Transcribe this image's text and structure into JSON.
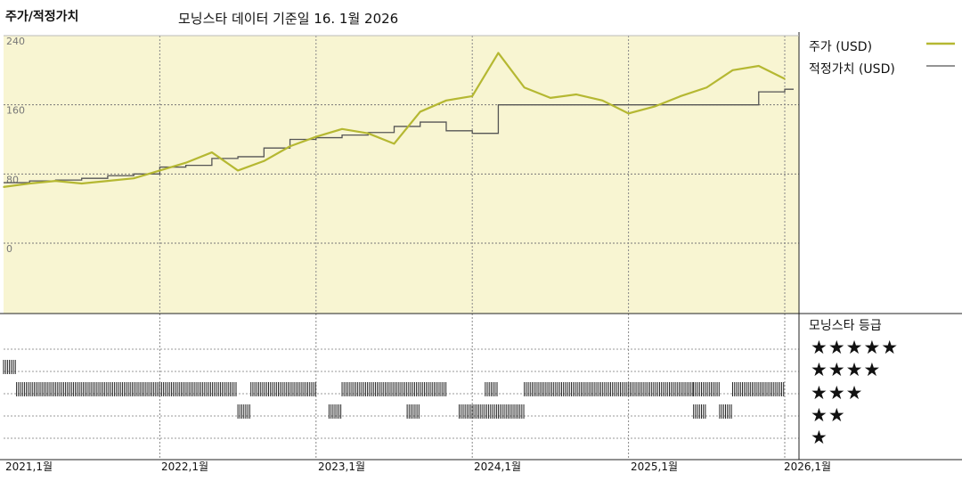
{
  "header": {
    "title": "주가/적정가치",
    "subtitle": "모닝스타 데이터 기준일 16. 1월 2026"
  },
  "legend": {
    "price_label": "주가 (USD)",
    "fair_value_label": "적정가치 (USD)"
  },
  "rating": {
    "title": "모닝스타 등급",
    "levels": [
      "★★★★★",
      "★★★★",
      "★★★",
      "★★",
      "★"
    ]
  },
  "colors": {
    "price": "#b5b832",
    "fair_value": "#555555",
    "plot_bg": "#f8f5d2"
  },
  "x_labels": [
    "2021,1월",
    "2022,1월",
    "2023,1월",
    "2024,1월",
    "2025,1월",
    "2026,1월"
  ],
  "chart_data": {
    "type": "line",
    "x": [
      "2021-01",
      "2021-03",
      "2021-05",
      "2021-07",
      "2021-09",
      "2021-11",
      "2022-01",
      "2022-03",
      "2022-05",
      "2022-07",
      "2022-09",
      "2022-11",
      "2023-01",
      "2023-03",
      "2023-05",
      "2023-07",
      "2023-09",
      "2023-11",
      "2024-01",
      "2024-03",
      "2024-05",
      "2024-07",
      "2024-09",
      "2024-11",
      "2025-01",
      "2025-03",
      "2025-05",
      "2025-07",
      "2025-09",
      "2025-11",
      "2026-01"
    ],
    "series": [
      {
        "name": "주가 (USD)",
        "values": [
          65,
          69,
          72,
          69,
          72,
          75,
          84,
          93,
          105,
          84,
          95,
          112,
          123,
          132,
          127,
          115,
          152,
          165,
          170,
          220,
          180,
          168,
          172,
          165,
          150,
          158,
          170,
          180,
          200,
          205,
          190
        ]
      },
      {
        "name": "적정가치 (USD)",
        "values": [
          70,
          72,
          73,
          75,
          78,
          80,
          88,
          90,
          98,
          100,
          110,
          120,
          122,
          125,
          128,
          135,
          140,
          130,
          127,
          160,
          160,
          160,
          160,
          160,
          160,
          160,
          160,
          160,
          160,
          175,
          178
        ]
      }
    ],
    "yticks": [
      "240",
      "160",
      "80",
      "0"
    ],
    "ylim": [
      0,
      240
    ],
    "grid": true,
    "legend_position": "right"
  },
  "star_rating_segments": [
    {
      "stars": 4,
      "from": "2021-01",
      "to": "2021-02"
    },
    {
      "stars": 3,
      "from": "2021-02",
      "to": "2022-07"
    },
    {
      "stars": 2,
      "from": "2022-07",
      "to": "2022-08"
    },
    {
      "stars": 3,
      "from": "2022-08",
      "to": "2023-01"
    },
    {
      "stars": 2,
      "from": "2023-02",
      "to": "2023-03"
    },
    {
      "stars": 3,
      "from": "2023-03",
      "to": "2023-11"
    },
    {
      "stars": 2,
      "from": "2023-08",
      "to": "2023-09"
    },
    {
      "stars": 2,
      "from": "2023-12",
      "to": "2024-03"
    },
    {
      "stars": 3,
      "from": "2024-02",
      "to": "2024-03"
    },
    {
      "stars": 2,
      "from": "2024-03",
      "to": "2024-05"
    },
    {
      "stars": 3,
      "from": "2024-05",
      "to": "2025-06"
    },
    {
      "stars": 2,
      "from": "2025-06",
      "to": "2025-07"
    },
    {
      "stars": 3,
      "from": "2025-06",
      "to": "2025-08"
    },
    {
      "stars": 2,
      "from": "2025-08",
      "to": "2025-09"
    },
    {
      "stars": 3,
      "from": "2025-09",
      "to": "2026-01"
    }
  ]
}
